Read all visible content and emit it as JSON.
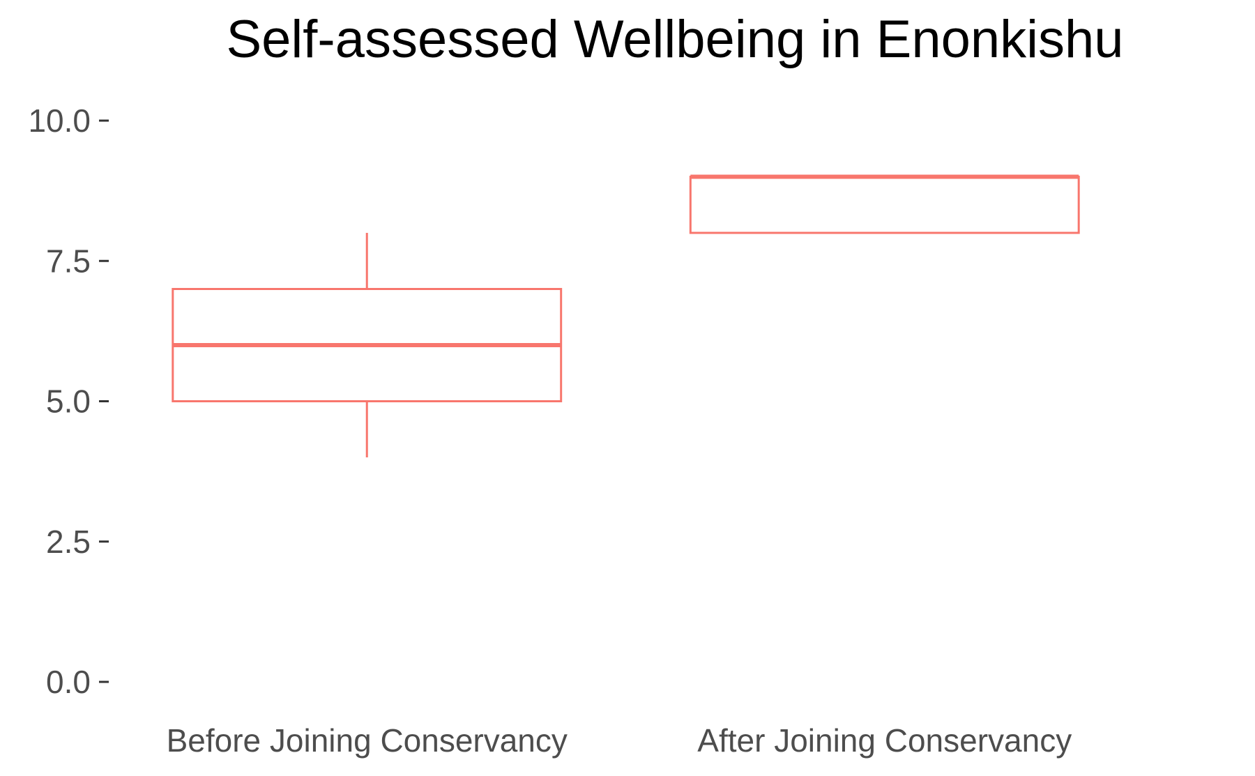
{
  "chart_data": {
    "type": "boxplot",
    "title": "Self-assessed Wellbeing in Enonkishu",
    "xlabel": "",
    "ylabel": "",
    "ylim": [
      0,
      10
    ],
    "y_ticks": [
      "0.0",
      "2.5",
      "5.0",
      "7.5",
      "10.0"
    ],
    "y_tick_values": [
      0,
      2.5,
      5,
      7.5,
      10
    ],
    "categories": [
      "Before Joining Conservancy",
      "After Joining Conservancy"
    ],
    "boxes": [
      {
        "category": "Before Joining Conservancy",
        "min": 4,
        "q1": 5,
        "median": 6,
        "q3": 7,
        "max": 8
      },
      {
        "category": "After Joining Conservancy",
        "min": 8,
        "q1": 8,
        "median": 9,
        "q3": 9,
        "max": 9
      }
    ],
    "grid": false,
    "legend": "none",
    "box_color": "#f8766d",
    "background": "#ffffff"
  }
}
